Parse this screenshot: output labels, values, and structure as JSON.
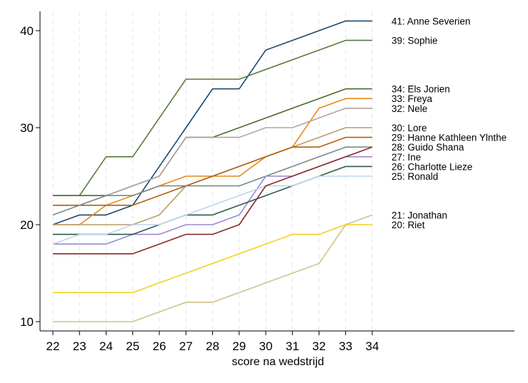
{
  "chart_data": {
    "type": "line",
    "xlabel": "score na wedstrijd",
    "ylabel": "",
    "title": "",
    "categories": [
      "22",
      "23",
      "24",
      "25",
      "26",
      "27",
      "28",
      "29",
      "30",
      "31",
      "32",
      "33",
      "34"
    ],
    "yticks": [
      10,
      20,
      30,
      40
    ],
    "ylim": [
      9.4,
      41.8
    ],
    "grid": "vertical dashed",
    "legend": "labels at line ends (right)",
    "series": [
      {
        "label": "41: Anne Severien",
        "color": "#1a476f",
        "values": [
          20,
          21,
          21,
          22,
          26,
          30,
          34,
          34,
          38,
          39,
          40,
          41,
          41
        ]
      },
      {
        "label": "39: Sophie",
        "color": "#5a7a3a",
        "values": [
          23,
          23,
          27,
          27,
          31,
          35,
          35,
          35,
          36,
          37,
          38,
          39,
          39
        ]
      },
      {
        "label": "34: Els Jorien",
        "color": "#4b6b2a",
        "values": [
          23,
          23,
          23,
          24,
          25,
          29,
          29,
          30,
          31,
          32,
          33,
          34,
          34
        ]
      },
      {
        "label": "33: Freya",
        "color": "#e48a1a",
        "values": [
          20,
          20,
          22,
          23,
          24,
          25,
          25,
          25,
          27,
          28,
          32,
          33,
          33
        ]
      },
      {
        "label": "32: Nele",
        "color": "#b8a0a0",
        "values": [
          22,
          22,
          23,
          24,
          25,
          29,
          29,
          29,
          30,
          30,
          31,
          32,
          32
        ]
      },
      {
        "label": "30: Lore",
        "color": "#b89c6a",
        "values": [
          20,
          20,
          20,
          20,
          21,
          24,
          25,
          26,
          27,
          28,
          29,
          30,
          30
        ]
      },
      {
        "label": "29: Hanne Kathleen Ylnthe",
        "color": "#b06010",
        "values": [
          22,
          22,
          22,
          22,
          23,
          24,
          25,
          26,
          27,
          28,
          28,
          29,
          29
        ]
      },
      {
        "label": "28: Guido Shana",
        "color": "#7a8a8a",
        "values": [
          21,
          22,
          23,
          23,
          24,
          24,
          24,
          24,
          25,
          26,
          27,
          28,
          28
        ]
      },
      {
        "label": "27: Ine",
        "color": "#9a8ad0",
        "values": [
          18,
          18,
          18,
          19,
          19,
          20,
          20,
          21,
          25,
          25,
          26,
          27,
          27
        ]
      },
      {
        "label": "26: Charlotte Lieze",
        "color": "#2a5a4a",
        "values": [
          19,
          19,
          19,
          19,
          20,
          21,
          21,
          22,
          23,
          24,
          25,
          26,
          26
        ]
      },
      {
        "label": "25: Ronald",
        "color": "#c0d4e8",
        "values": [
          18,
          19,
          19,
          20,
          20,
          21,
          22,
          23,
          24,
          24,
          25,
          25,
          25
        ]
      },
      {
        "label": "",
        "color": "#8b2828",
        "values": [
          17,
          17,
          17,
          17,
          18,
          19,
          19,
          20,
          24,
          25,
          26,
          27,
          28
        ]
      },
      {
        "label": "21: Jonathan",
        "color": "#cfc28a",
        "values": [
          10,
          10,
          10,
          10,
          11,
          12,
          12,
          13,
          14,
          15,
          16,
          20,
          21
        ]
      },
      {
        "label": "20: Riet",
        "color": "#f2d21a",
        "values": [
          13,
          13,
          13,
          13,
          14,
          15,
          16,
          17,
          18,
          19,
          19,
          20,
          20
        ]
      }
    ]
  }
}
